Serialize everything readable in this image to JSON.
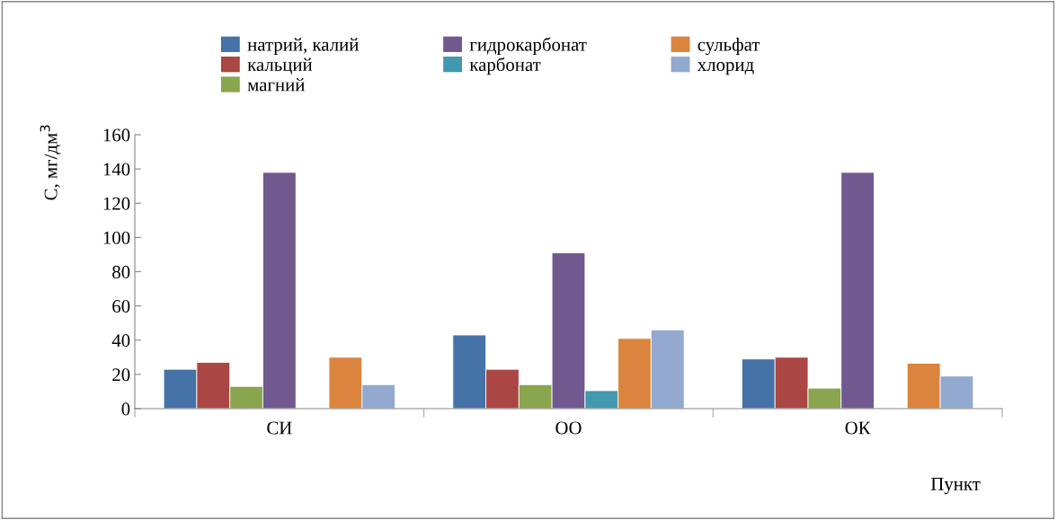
{
  "chart_data": {
    "type": "bar",
    "xlabel": "Пункт",
    "ylabel": "C, мг/дм$^{3}$",
    "categories": [
      "СИ",
      "ОО",
      "ОК"
    ],
    "series": [
      {
        "name": "натрий, калий",
        "color": "#4572a7",
        "values": [
          23,
          43,
          29
        ]
      },
      {
        "name": "кальций",
        "color": "#aa4643",
        "values": [
          27,
          23,
          30
        ]
      },
      {
        "name": "магний",
        "color": "#89a54e",
        "values": [
          13,
          14,
          12
        ]
      },
      {
        "name": "гидрокарбонат",
        "color": "#71588f",
        "values": [
          138,
          91,
          138
        ]
      },
      {
        "name": "карбонат",
        "color": "#4198af",
        "values": [
          null,
          10.5,
          null
        ]
      },
      {
        "name": "сульфат",
        "color": "#db843d",
        "values": [
          30,
          41,
          26.5
        ]
      },
      {
        "name": "хлорид",
        "color": "#93a9cf",
        "values": [
          14,
          46,
          19
        ]
      }
    ],
    "ylim": [
      0,
      160
    ],
    "yticks": [
      0,
      20,
      40,
      60,
      80,
      100,
      120,
      140,
      160
    ],
    "grid": false,
    "legend": "top"
  }
}
